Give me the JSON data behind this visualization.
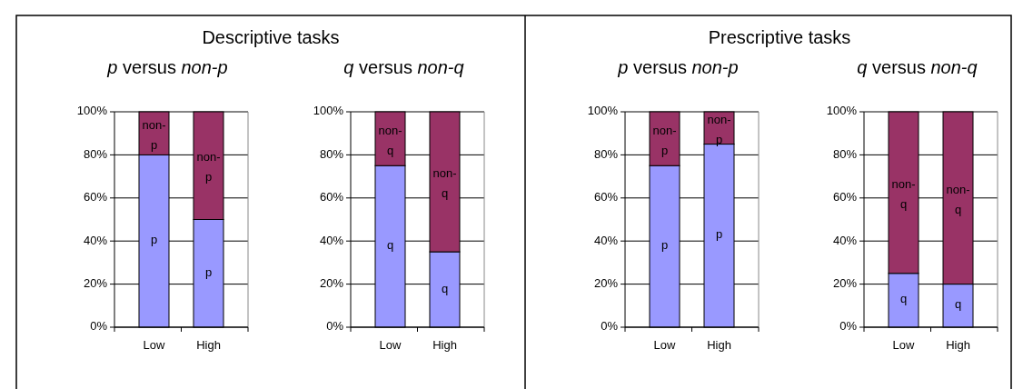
{
  "chart_data": [
    {
      "type": "bar",
      "annotations": [
        "Descriptive tasks"
      ],
      "title": "p versus non-p",
      "categories": [
        "Low",
        "High"
      ],
      "stacked": true,
      "grid": "y",
      "ylim": [
        0,
        100
      ],
      "yticks": [
        {
          "value": 0,
          "label": "0%"
        },
        {
          "value": 20,
          "label": "20%"
        },
        {
          "value": 40,
          "label": "40%"
        },
        {
          "value": 60,
          "label": "60%"
        },
        {
          "value": 80,
          "label": "80%"
        },
        {
          "value": 100,
          "label": "100%"
        }
      ],
      "series": [
        {
          "name": "p",
          "color": "#9999ff",
          "values": [
            80,
            50
          ]
        },
        {
          "name": "non-p",
          "color": "#993366",
          "values": [
            20,
            50
          ]
        }
      ]
    },
    {
      "type": "bar",
      "title": "q versus non-q",
      "categories": [
        "Low",
        "High"
      ],
      "stacked": true,
      "grid": "y",
      "ylim": [
        0,
        100
      ],
      "yticks": [
        {
          "value": 0,
          "label": "0%"
        },
        {
          "value": 20,
          "label": "20%"
        },
        {
          "value": 40,
          "label": "40%"
        },
        {
          "value": 60,
          "label": "60%"
        },
        {
          "value": 80,
          "label": "80%"
        },
        {
          "value": 100,
          "label": "100%"
        }
      ],
      "series": [
        {
          "name": "q",
          "color": "#9999ff",
          "values": [
            75,
            35
          ]
        },
        {
          "name": "non-q",
          "color": "#993366",
          "values": [
            25,
            65
          ]
        }
      ]
    },
    {
      "type": "bar",
      "annotations": [
        "Prescriptive tasks"
      ],
      "title": "p versus non-p",
      "categories": [
        "Low",
        "High"
      ],
      "stacked": true,
      "grid": "y",
      "ylim": [
        0,
        100
      ],
      "yticks": [
        {
          "value": 0,
          "label": "0%"
        },
        {
          "value": 20,
          "label": "20%"
        },
        {
          "value": 40,
          "label": "40%"
        },
        {
          "value": 60,
          "label": "60%"
        },
        {
          "value": 80,
          "label": "80%"
        },
        {
          "value": 100,
          "label": "100%"
        }
      ],
      "series": [
        {
          "name": "p",
          "color": "#9999ff",
          "values": [
            75,
            85
          ]
        },
        {
          "name": "non-p",
          "color": "#993366",
          "values": [
            25,
            15
          ]
        }
      ]
    },
    {
      "type": "bar",
      "title": "q versus non-q",
      "categories": [
        "Low",
        "High"
      ],
      "stacked": true,
      "grid": "y",
      "ylim": [
        0,
        100
      ],
      "yticks": [
        {
          "value": 0,
          "label": "0%"
        },
        {
          "value": 20,
          "label": "20%"
        },
        {
          "value": 40,
          "label": "40%"
        },
        {
          "value": 60,
          "label": "60%"
        },
        {
          "value": 80,
          "label": "80%"
        },
        {
          "value": 100,
          "label": "100%"
        }
      ],
      "series": [
        {
          "name": "q",
          "color": "#9999ff",
          "values": [
            25,
            20
          ]
        },
        {
          "name": "non-q",
          "color": "#993366",
          "values": [
            75,
            80
          ]
        }
      ]
    }
  ]
}
